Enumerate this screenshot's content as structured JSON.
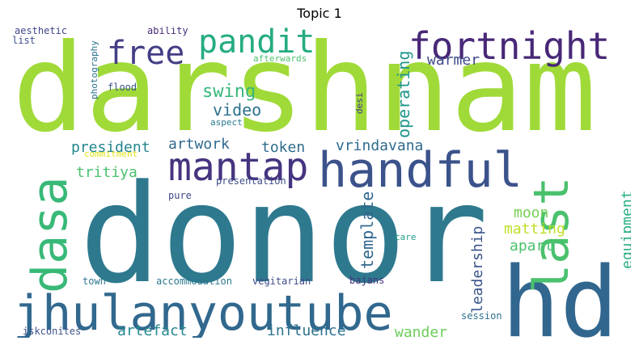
{
  "title": "Topic 1",
  "words": [
    {
      "text": "darshnam",
      "color": "#a0da39"
    },
    {
      "text": "donor",
      "color": "#2e798e"
    },
    {
      "text": "hd",
      "color": "#31668e"
    },
    {
      "text": "jhulanyoutube",
      "color": "#31688e"
    },
    {
      "text": "handful",
      "color": "#3b528b"
    },
    {
      "text": "mantap",
      "color": "#463480"
    },
    {
      "text": "fortnight",
      "color": "#482878"
    },
    {
      "text": "pandit",
      "color": "#25ac82"
    },
    {
      "text": "free",
      "color": "#433e85"
    },
    {
      "text": "last",
      "color": "#4ac16d"
    },
    {
      "text": "dasa",
      "color": "#38b977"
    },
    {
      "text": "warmer",
      "color": "#3e4a89"
    },
    {
      "text": "swing",
      "color": "#35b779"
    },
    {
      "text": "video",
      "color": "#2d718e"
    },
    {
      "text": "president",
      "color": "#24868e"
    },
    {
      "text": "artwork",
      "color": "#306a8e"
    },
    {
      "text": "token",
      "color": "#2f6c8e"
    },
    {
      "text": "vrindavana",
      "color": "#2f6b8e"
    },
    {
      "text": "tritiya",
      "color": "#4ac16d"
    },
    {
      "text": "operating",
      "color": "#1f968b"
    },
    {
      "text": "template",
      "color": "#31688e"
    },
    {
      "text": "moon",
      "color": "#75d054"
    },
    {
      "text": "matting",
      "color": "#bddf26"
    },
    {
      "text": "apart",
      "color": "#4ac16d"
    },
    {
      "text": "equipment",
      "color": "#29af7f"
    },
    {
      "text": "leadership",
      "color": "#3a548c"
    },
    {
      "text": "artefact",
      "color": "#24878e"
    },
    {
      "text": "influence",
      "color": "#2c728e"
    },
    {
      "text": "wander",
      "color": "#6ccd5a"
    },
    {
      "text": "aesthetic",
      "color": "#404688"
    },
    {
      "text": "list",
      "color": "#3d4e8a"
    },
    {
      "text": "ability",
      "color": "#472c7a"
    },
    {
      "text": "photography",
      "color": "#2c718e"
    },
    {
      "text": "afterwards",
      "color": "#4ac16d"
    },
    {
      "text": "flood",
      "color": "#3b528b"
    },
    {
      "text": "desi",
      "color": "#443a83"
    },
    {
      "text": "aspect",
      "color": "#2a788e"
    },
    {
      "text": "commitment",
      "color": "#dfe318"
    },
    {
      "text": "presentation",
      "color": "#3e4c8a"
    },
    {
      "text": "pure",
      "color": "#3f4889"
    },
    {
      "text": "care",
      "color": "#1f9e89"
    },
    {
      "text": "town",
      "color": "#2b758e"
    },
    {
      "text": "accommodation",
      "color": "#2a788e"
    },
    {
      "text": "vegitarian",
      "color": "#3e4a89"
    },
    {
      "text": "bajans",
      "color": "#46337f"
    },
    {
      "text": "session",
      "color": "#2d718e"
    },
    {
      "text": "iskconites",
      "color": "#3b528b"
    }
  ]
}
